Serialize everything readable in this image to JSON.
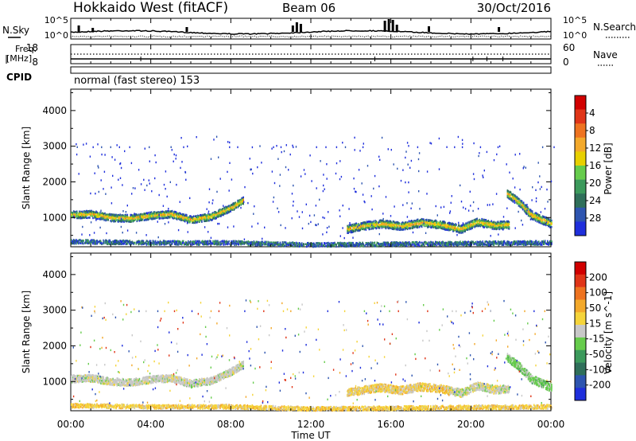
{
  "header": {
    "station": "Hokkaido West (fitACF)",
    "beam": "Beam 06",
    "date": "30/Oct/2016"
  },
  "top_panel": {
    "left_label": "N.Sky",
    "right_label": "N.Search",
    "left_ticks": [
      "10^5",
      "10^0"
    ],
    "right_ticks": [
      "10^5",
      "10^0"
    ]
  },
  "freq_panel": {
    "left_label_line1": "Freq.",
    "left_label_line2": "[MHz]",
    "right_label": "Nave",
    "left_ticks": [
      "18",
      "8"
    ],
    "right_ticks": [
      "60",
      "0"
    ]
  },
  "cpid": {
    "label": "CPID",
    "mode": "normal (fast stereo) 153"
  },
  "x_axis": {
    "label": "Time UT",
    "ticks": [
      "00:00",
      "04:00",
      "08:00",
      "12:00",
      "16:00",
      "20:00",
      "00:00"
    ]
  },
  "chart_data": [
    {
      "type": "heatmap",
      "title": "",
      "xlabel": "Time UT",
      "ylabel": "Slant Range [km]",
      "xlim": [
        0,
        24
      ],
      "ylim": [
        180,
        4600
      ],
      "y_ticks": [
        "1000",
        "2000",
        "3000",
        "4000"
      ],
      "y_tick_values": [
        1000,
        2000,
        3000,
        4000
      ],
      "colorbar": {
        "label": "Power [dB]",
        "ticks": [
          "4",
          "8",
          "12",
          "16",
          "20",
          "24",
          "28"
        ],
        "colors": [
          "#1f2fdc",
          "#2e55b0",
          "#2f6f5a",
          "#3c9a5c",
          "#66cc4c",
          "#e8d000",
          "#f3a92b",
          "#ee7320",
          "#e03518",
          "#d10000"
        ]
      },
      "bands": [
        {
          "name": "morning-echo",
          "points": [
            [
              0.0,
              1100
            ],
            [
              1.0,
              1120
            ],
            [
              2.0,
              1020
            ],
            [
              3.0,
              1000
            ],
            [
              4.0,
              1080
            ],
            [
              5.0,
              1120
            ],
            [
              6.0,
              960
            ],
            [
              7.0,
              1050
            ],
            [
              8.0,
              1300
            ],
            [
              8.6,
              1500
            ]
          ],
          "width": 200
        },
        {
          "name": "evening-echo",
          "points": [
            [
              13.8,
              700
            ],
            [
              14.5,
              780
            ],
            [
              15.5,
              850
            ],
            [
              16.5,
              780
            ],
            [
              17.5,
              880
            ],
            [
              18.5,
              820
            ],
            [
              19.5,
              700
            ],
            [
              20.3,
              900
            ],
            [
              21.2,
              800
            ],
            [
              21.9,
              820
            ]
          ],
          "width": 220
        },
        {
          "name": "dusk-arc",
          "points": [
            [
              21.8,
              1700
            ],
            [
              22.4,
              1450
            ],
            [
              23.0,
              1100
            ],
            [
              23.6,
              950
            ],
            [
              24.0,
              850
            ]
          ],
          "width": 230
        },
        {
          "name": "near-range",
          "points": [
            [
              0.0,
              350
            ],
            [
              4.0,
              320
            ],
            [
              8.0,
              320
            ],
            [
              12.0,
              260
            ],
            [
              16.0,
              280
            ],
            [
              20.0,
              300
            ],
            [
              24.0,
              320
            ]
          ],
          "width": 110
        }
      ]
    },
    {
      "type": "heatmap",
      "title": "",
      "xlabel": "Time UT",
      "ylabel": "Slant Range [km]",
      "xlim": [
        0,
        24
      ],
      "ylim": [
        180,
        4600
      ],
      "y_ticks": [
        "1000",
        "2000",
        "3000",
        "4000"
      ],
      "y_tick_values": [
        1000,
        2000,
        3000,
        4000
      ],
      "colorbar": {
        "label": "Velocity [m s^-1]",
        "ticks": [
          "200",
          "100",
          "50",
          "15",
          "-15",
          "-50",
          "-100",
          "-200"
        ],
        "colors": [
          "#1f2fdc",
          "#2e55b0",
          "#2f6f5a",
          "#3c9a5c",
          "#66cc4c",
          "#c8c8c8",
          "#f5d43a",
          "#f3a92b",
          "#ee7320",
          "#e03518",
          "#d10000"
        ]
      },
      "bands": [
        {
          "name": "morning-echo",
          "points": [
            [
              0.0,
              1100
            ],
            [
              1.0,
              1120
            ],
            [
              2.0,
              1020
            ],
            [
              3.0,
              1000
            ],
            [
              4.0,
              1080
            ],
            [
              5.0,
              1120
            ],
            [
              6.0,
              960
            ],
            [
              7.0,
              1050
            ],
            [
              8.0,
              1300
            ],
            [
              8.6,
              1500
            ]
          ],
          "width": 200
        },
        {
          "name": "evening-echo",
          "points": [
            [
              13.8,
              700
            ],
            [
              14.5,
              780
            ],
            [
              15.5,
              850
            ],
            [
              16.5,
              780
            ],
            [
              17.5,
              880
            ],
            [
              18.5,
              820
            ],
            [
              19.5,
              700
            ],
            [
              20.3,
              900
            ],
            [
              21.2,
              800
            ],
            [
              21.9,
              820
            ]
          ],
          "width": 220
        },
        {
          "name": "dusk-arc",
          "points": [
            [
              21.8,
              1700
            ],
            [
              22.4,
              1450
            ],
            [
              23.0,
              1100
            ],
            [
              23.6,
              950
            ],
            [
              24.0,
              850
            ]
          ],
          "width": 230
        },
        {
          "name": "near-range",
          "points": [
            [
              0.0,
              350
            ],
            [
              4.0,
              320
            ],
            [
              8.0,
              320
            ],
            [
              12.0,
              260
            ],
            [
              16.0,
              280
            ],
            [
              20.0,
              300
            ],
            [
              24.0,
              320
            ]
          ],
          "width": 110
        }
      ]
    }
  ]
}
